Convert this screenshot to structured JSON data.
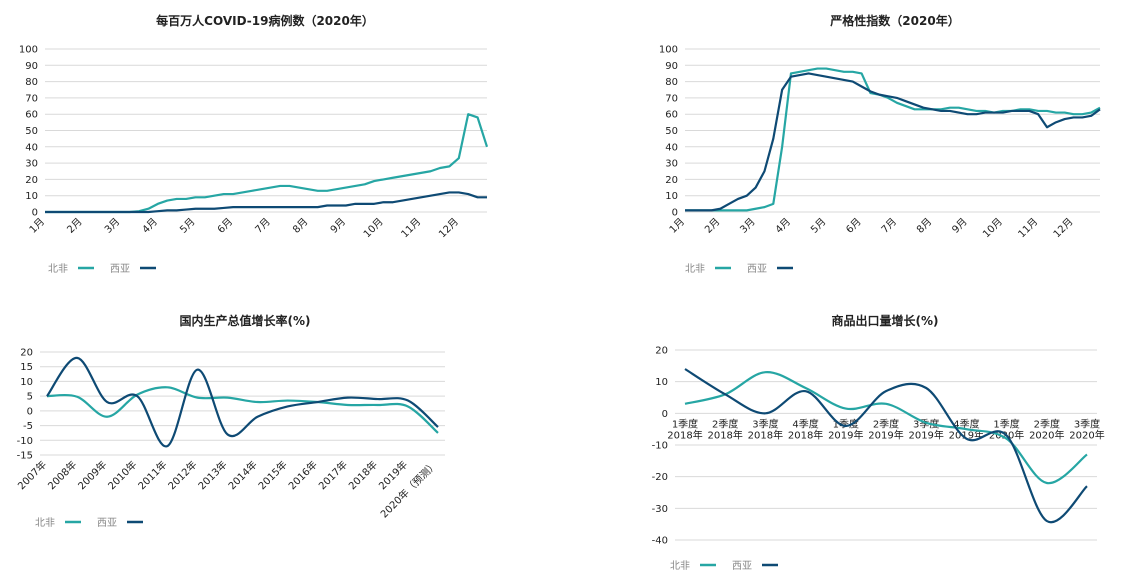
{
  "chart_data": [
    {
      "type": "line",
      "title": "每百万人COVID-19病例数（2020年）",
      "categories": [
        "1月",
        null,
        null,
        null,
        "2月",
        null,
        null,
        null,
        "3月",
        null,
        null,
        null,
        "4月",
        null,
        null,
        null,
        "5月",
        null,
        null,
        null,
        "6月",
        null,
        null,
        null,
        "7月",
        null,
        null,
        null,
        "8月",
        null,
        null,
        null,
        "9月",
        null,
        null,
        null,
        "10月",
        null,
        null,
        null,
        "11月",
        null,
        null,
        null,
        "12月",
        null,
        null,
        null
      ],
      "series": [
        {
          "name": "北非",
          "color": "#26a6a4",
          "values": [
            0,
            0,
            0,
            0,
            0,
            0,
            0,
            0,
            0,
            0,
            0.5,
            2,
            5,
            7,
            8,
            8,
            9,
            9,
            10,
            11,
            11,
            12,
            13,
            14,
            15,
            16,
            16,
            15,
            14,
            13,
            13,
            14,
            15,
            16,
            17,
            19,
            20,
            21,
            22,
            23,
            24,
            25,
            27,
            28,
            33,
            60,
            58,
            40
          ]
        },
        {
          "name": "西亚",
          "color": "#0e4a74",
          "values": [
            0,
            0,
            0,
            0,
            0,
            0,
            0,
            0,
            0,
            0,
            0,
            0,
            0.5,
            1,
            1,
            1.5,
            2,
            2,
            2,
            2.5,
            3,
            3,
            3,
            3,
            3,
            3,
            3,
            3,
            3,
            3,
            4,
            4,
            4,
            5,
            5,
            5,
            6,
            6,
            7,
            8,
            9,
            10,
            11,
            12,
            12,
            11,
            9,
            9
          ]
        }
      ],
      "ylim": [
        0,
        100
      ],
      "yticks": [
        0,
        10,
        20,
        30,
        40,
        50,
        60,
        70,
        80,
        90,
        100
      ],
      "grid": true
    },
    {
      "type": "line",
      "title": "严格性指数（2020年）",
      "categories": [
        "1月",
        null,
        null,
        null,
        "2月",
        null,
        null,
        null,
        "3月",
        null,
        null,
        null,
        "4月",
        null,
        null,
        null,
        "5月",
        null,
        null,
        null,
        "6月",
        null,
        null,
        null,
        "7月",
        null,
        null,
        null,
        "8月",
        null,
        null,
        null,
        "9月",
        null,
        null,
        null,
        "10月",
        null,
        null,
        null,
        "11月",
        null,
        null,
        null,
        "12月",
        null,
        null,
        null
      ],
      "series": [
        {
          "name": "北非",
          "color": "#26a6a4",
          "values": [
            1,
            1,
            1,
            1,
            1,
            1,
            1,
            1,
            2,
            3,
            5,
            40,
            85,
            86,
            87,
            88,
            88,
            87,
            86,
            86,
            85,
            73,
            72,
            70,
            67,
            65,
            63,
            63,
            63,
            63,
            64,
            64,
            63,
            62,
            62,
            61,
            62,
            62,
            63,
            63,
            62,
            62,
            61,
            61,
            60,
            60,
            61,
            64
          ]
        },
        {
          "name": "西亚",
          "color": "#0e4a74",
          "values": [
            1,
            1,
            1,
            1,
            2,
            5,
            8,
            10,
            15,
            25,
            45,
            75,
            83,
            84,
            85,
            84,
            83,
            82,
            81,
            80,
            77,
            74,
            72,
            71,
            70,
            68,
            66,
            64,
            63,
            62,
            62,
            61,
            60,
            60,
            61,
            61,
            61,
            62,
            62,
            62,
            60,
            52,
            55,
            57,
            58,
            58,
            59,
            63
          ]
        }
      ],
      "ylim": [
        0,
        100
      ],
      "yticks": [
        0,
        10,
        20,
        30,
        40,
        50,
        60,
        70,
        80,
        90,
        100
      ],
      "grid": true
    },
    {
      "type": "smooth",
      "title": "国内生产总值增长率(%)",
      "categories": [
        "2007年",
        "2008年",
        "2009年",
        "2010年",
        "2011年",
        "2012年",
        "2013年",
        "2014年",
        "2015年",
        "2016年",
        "2017年",
        "2018年",
        "2019年",
        "2020年（预测）"
      ],
      "series": [
        {
          "name": "北非",
          "color": "#26a6a4",
          "values": [
            5,
            4.8,
            -2,
            5.5,
            8,
            4.5,
            4.5,
            3,
            3.5,
            3,
            2,
            2,
            1.5,
            -7.5
          ]
        },
        {
          "name": "西亚",
          "color": "#0e4a74",
          "values": [
            5,
            18,
            3,
            5,
            -12,
            14,
            -8,
            -2,
            1.5,
            3,
            4.5,
            4,
            3.5,
            -5.5
          ]
        }
      ],
      "ylim": [
        -15,
        20
      ],
      "yticks": [
        -15,
        -10,
        -5,
        0,
        5,
        10,
        15,
        20
      ],
      "grid": true
    },
    {
      "type": "smooth",
      "title": "商品出口量增长(%)",
      "categories": [
        [
          "1季度",
          "2018年"
        ],
        [
          "2季度",
          "2018年"
        ],
        [
          "3季度",
          "2018年"
        ],
        [
          "4季度",
          "2018年"
        ],
        [
          "1季度",
          "2019年"
        ],
        [
          "2季度",
          "2019年"
        ],
        [
          "3季度",
          "2019年"
        ],
        [
          "4季度",
          "2019年"
        ],
        [
          "1季度",
          "2020年"
        ],
        [
          "2季度",
          "2020年"
        ],
        [
          "3季度",
          "2020年"
        ]
      ],
      "series": [
        {
          "name": "北非",
          "color": "#26a6a4",
          "values": [
            3,
            6,
            13,
            8,
            1.5,
            3,
            -3,
            -5,
            -8,
            -22,
            -13
          ]
        },
        {
          "name": "西亚",
          "color": "#0e4a74",
          "values": [
            14,
            6,
            0,
            7,
            -4,
            7,
            8,
            -8,
            -7,
            -34,
            -23
          ]
        }
      ],
      "ylim": [
        -40,
        20
      ],
      "yticks": [
        -40,
        -30,
        -20,
        -10,
        0,
        10,
        20
      ],
      "grid": true
    }
  ]
}
